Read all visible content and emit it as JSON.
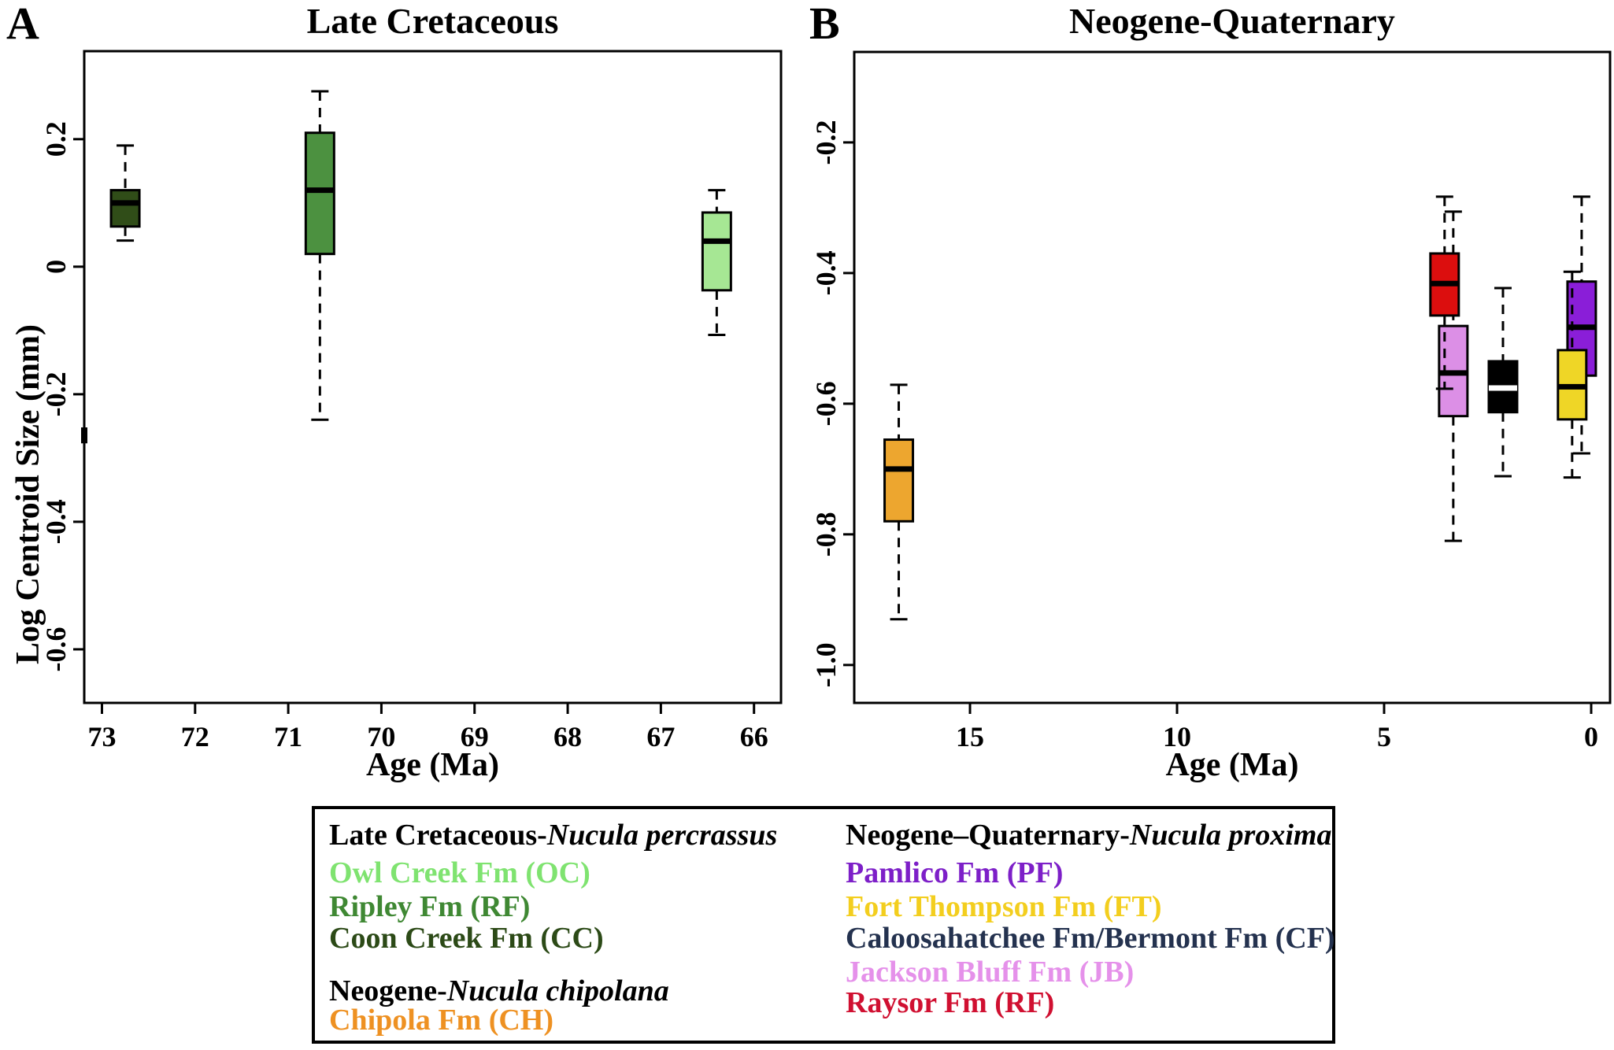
{
  "figure": {
    "panel_a_letter": "A",
    "panel_b_letter": "B",
    "y_axis_label": "Log Centroid Size (mm)"
  },
  "chart_data": [
    {
      "id": "late-cretaceous-panel",
      "type": "boxplot",
      "title": "Late Cretaceous",
      "xlabel": "Age (Ma)",
      "ylabel": "Log Centroid Size (mm)",
      "x_reversed": true,
      "grid": false,
      "xlim": [
        73.19,
        65.71
      ],
      "ylim": [
        -0.684,
        0.338
      ],
      "x_ticks": [
        {
          "v": 73,
          "label": "73"
        },
        {
          "v": 72,
          "label": "72"
        },
        {
          "v": 71,
          "label": "71"
        },
        {
          "v": 70,
          "label": "70"
        },
        {
          "v": 69,
          "label": "69"
        },
        {
          "v": 68,
          "label": "68"
        },
        {
          "v": 67,
          "label": "67"
        },
        {
          "v": 66,
          "label": "66"
        }
      ],
      "y_ticks": [
        {
          "v": 0.2,
          "label": "0.2"
        },
        {
          "v": 0,
          "label": "0"
        },
        {
          "v": -0.2,
          "label": "-0.2"
        },
        {
          "v": -0.4,
          "label": "-0.4"
        },
        {
          "v": -0.6,
          "label": "-0.6"
        }
      ],
      "boxes": [
        {
          "name": "Coon Creek Fm (CC)",
          "abbr": "CC",
          "age_ma": 72.75,
          "color": "#304D18",
          "median_color": "#000000",
          "whisker_low": 0.041,
          "q1": 0.063,
          "median": 0.1,
          "q3": 0.12,
          "whisker_high": 0.19
        },
        {
          "name": "Ripley Fm (RF)",
          "abbr": "RF",
          "age_ma": 70.66,
          "color": "#4C9140",
          "median_color": "#000000",
          "whisker_low": -0.24,
          "q1": 0.02,
          "median": 0.12,
          "q3": 0.21,
          "whisker_high": 0.275
        },
        {
          "name": "Owl Creek Fm (OC)",
          "abbr": "OC",
          "age_ma": 66.4,
          "color": "#A6E794",
          "median_color": "#000000",
          "whisker_low": -0.107,
          "q1": -0.037,
          "median": 0.04,
          "q3": 0.085,
          "whisker_high": 0.12
        }
      ],
      "edge_mark": {
        "from": -0.252,
        "to": -0.277
      }
    },
    {
      "id": "neogene-quaternary-panel",
      "type": "boxplot",
      "title": "Neogene-Quaternary",
      "xlabel": "Age (Ma)",
      "ylabel": "Log Centroid Size (mm)",
      "x_reversed": true,
      "grid": false,
      "xlim": [
        17.795,
        -0.456
      ],
      "ylim": [
        -1.058,
        -0.0615
      ],
      "x_ticks": [
        {
          "v": 15,
          "label": "15"
        },
        {
          "v": 10,
          "label": "10"
        },
        {
          "v": 5,
          "label": "5"
        },
        {
          "v": 0,
          "label": "0"
        }
      ],
      "y_ticks": [
        {
          "v": -0.2,
          "label": "-0.2"
        },
        {
          "v": -0.4,
          "label": "-0.4"
        },
        {
          "v": -0.6,
          "label": "-0.6"
        },
        {
          "v": -0.8,
          "label": "-0.8"
        },
        {
          "v": -1.0,
          "label": "-1.0"
        }
      ],
      "boxes": [
        {
          "name": "Chipola Fm (CH)",
          "abbr": "CH",
          "age_ma": 16.72,
          "color": "#EDA62F",
          "median_color": "#000000",
          "whisker_low": -0.93,
          "q1": -0.78,
          "median": -0.7,
          "q3": -0.655,
          "whisker_high": -0.571
        },
        {
          "name": "Jackson Bluff Fm (JB)",
          "abbr": "JB",
          "age_ma": 3.33,
          "color": "#DC8FE6",
          "median_color": "#000000",
          "whisker_low": -0.81,
          "q1": -0.619,
          "median": -0.553,
          "q3": -0.481,
          "whisker_high": -0.306
        },
        {
          "name": "Raysor Fm (RF)",
          "abbr": "RF",
          "age_ma": 3.54,
          "color": "#DC0E0E",
          "median_color": "#000000",
          "whisker_low": -0.577,
          "q1": -0.465,
          "median": -0.416,
          "q3": -0.37,
          "whisker_high": -0.283
        },
        {
          "name": "Caloosahatchee Fm/Bermont Fm (CF)",
          "abbr": "CF",
          "age_ma": 2.13,
          "color": "#000000",
          "median_color": "#ffffff",
          "whisker_low": -0.711,
          "q1": -0.613,
          "median": -0.576,
          "q3": -0.535,
          "whisker_high": -0.423
        },
        {
          "name": "Pamlico Fm (PF)",
          "abbr": "PF",
          "age_ma": 0.23,
          "color": "#8A1ED8",
          "median_color": "#000000",
          "whisker_low": -0.676,
          "q1": -0.557,
          "median": -0.483,
          "q3": -0.413,
          "whisker_high": -0.283
        },
        {
          "name": "Fort Thompson Fm (FT)",
          "abbr": "FT",
          "age_ma": 0.46,
          "color": "#EFD626",
          "median_color": "#000000",
          "whisker_low": -0.713,
          "q1": -0.624,
          "median": -0.574,
          "q3": -0.518,
          "whisker_high": -0.398
        }
      ]
    }
  ],
  "legend": {
    "left": [
      {
        "type": "header",
        "prefix": "Late Cretaceous-",
        "species": "Nucula percrassus",
        "color": "#000000"
      },
      {
        "type": "item",
        "label": "Owl Creek Fm (OC)",
        "color": "#7FE370"
      },
      {
        "type": "item",
        "label": "Ripley Fm (RF)",
        "color": "#3F8833"
      },
      {
        "type": "item",
        "label": "Coon Creek Fm (CC)",
        "color": "#2C4A17"
      },
      {
        "type": "header",
        "prefix": "Neogene-",
        "species": "Nucula chipolana",
        "color": "#000000"
      },
      {
        "type": "item",
        "label": "Chipola Fm (CH)",
        "color": "#EE9122"
      }
    ],
    "right": [
      {
        "type": "header",
        "prefix": "Neogene–Quaternary-",
        "species": "Nucula proxima",
        "color": "#000000"
      },
      {
        "type": "item",
        "label": "Pamlico Fm (PF)",
        "color": "#7D1FC8"
      },
      {
        "type": "item",
        "label": "Fort Thompson Fm (FT)",
        "color": "#F3CE1E"
      },
      {
        "type": "item",
        "label": "Caloosahatchee Fm/Bermont Fm (CF)",
        "color": "#24324F"
      },
      {
        "type": "item",
        "label": "Jackson Bluff Fm (JB)",
        "color": "#E591EA"
      },
      {
        "type": "item",
        "label": "Raysor Fm (RF)",
        "color": "#D01031"
      }
    ]
  }
}
